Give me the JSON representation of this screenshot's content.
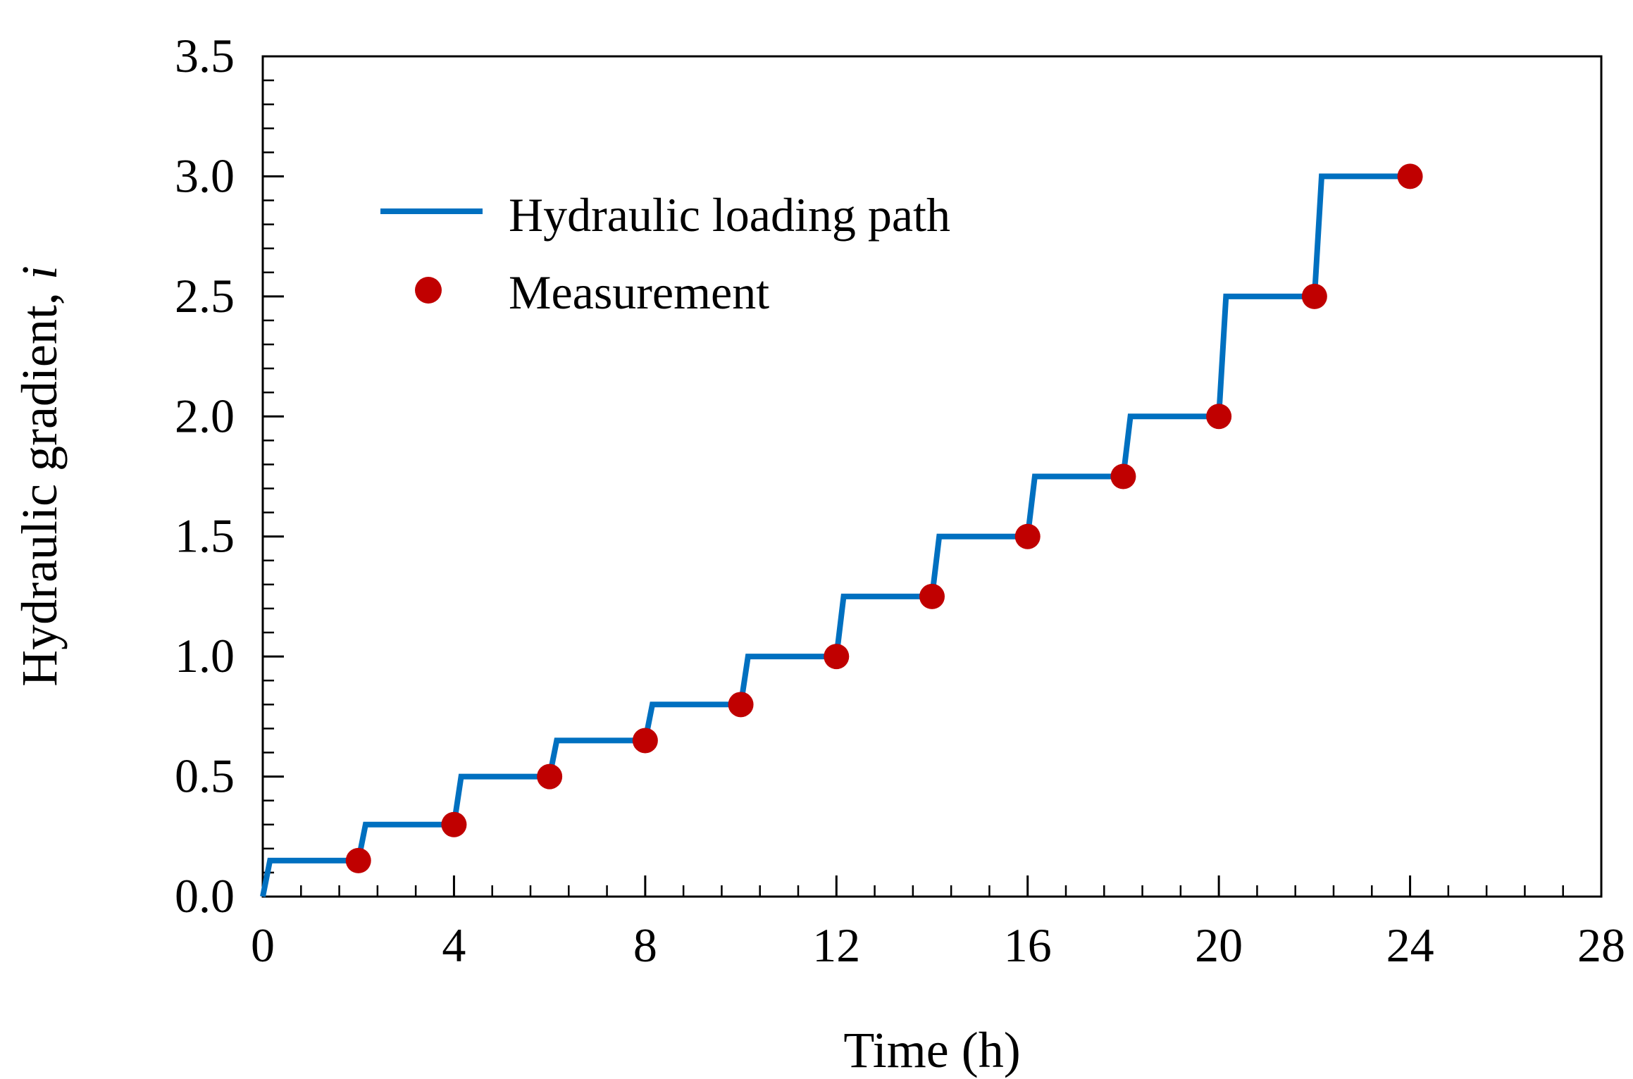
{
  "chart_data": {
    "type": "line",
    "xlabel": "Time (h)",
    "ylabel": "Hydraulic gradient, ",
    "ylabel_italic": "i",
    "xlim": [
      0,
      28
    ],
    "ylim": [
      0,
      3.5
    ],
    "x_major_ticks": [
      0,
      4,
      8,
      12,
      16,
      20,
      24,
      28
    ],
    "x_tick_labels": [
      "0",
      "4",
      "8",
      "12",
      "16",
      "20",
      "24",
      "28"
    ],
    "x_minor_step": 0.8,
    "y_major_ticks": [
      0,
      0.5,
      1.0,
      1.5,
      2.0,
      2.5,
      3.0,
      3.5
    ],
    "y_tick_labels": [
      "0.0",
      "0.5",
      "1.0",
      "1.5",
      "2.0",
      "2.5",
      "3.0",
      "3.5"
    ],
    "y_minor_step": 0.1,
    "grid": false,
    "legend_position": "upper-left",
    "series": [
      {
        "name": "Hydraulic loading path",
        "kind": "line",
        "color": "#0070C0",
        "points": [
          [
            0,
            0
          ],
          [
            0.15,
            0.15
          ],
          [
            2,
            0.15
          ],
          [
            2.15,
            0.3
          ],
          [
            4,
            0.3
          ],
          [
            4.15,
            0.5
          ],
          [
            6,
            0.5
          ],
          [
            6.15,
            0.65
          ],
          [
            8,
            0.65
          ],
          [
            8.15,
            0.8
          ],
          [
            10,
            0.8
          ],
          [
            10.15,
            1.0
          ],
          [
            12,
            1.0
          ],
          [
            12.15,
            1.25
          ],
          [
            14,
            1.25
          ],
          [
            14.15,
            1.5
          ],
          [
            16,
            1.5
          ],
          [
            16.15,
            1.75
          ],
          [
            18,
            1.75
          ],
          [
            18.15,
            2.0
          ],
          [
            20,
            2.0
          ],
          [
            20.15,
            2.5
          ],
          [
            22,
            2.5
          ],
          [
            22.15,
            3.0
          ],
          [
            24,
            3.0
          ]
        ]
      },
      {
        "name": "Measurement",
        "kind": "scatter",
        "color": "#C00000",
        "points": [
          [
            2,
            0.15
          ],
          [
            4,
            0.3
          ],
          [
            6,
            0.5
          ],
          [
            8,
            0.65
          ],
          [
            10,
            0.8
          ],
          [
            12,
            1.0
          ],
          [
            14,
            1.25
          ],
          [
            16,
            1.5
          ],
          [
            18,
            1.75
          ],
          [
            20,
            2.0
          ],
          [
            22,
            2.5
          ],
          [
            24,
            3.0
          ]
        ]
      }
    ]
  }
}
